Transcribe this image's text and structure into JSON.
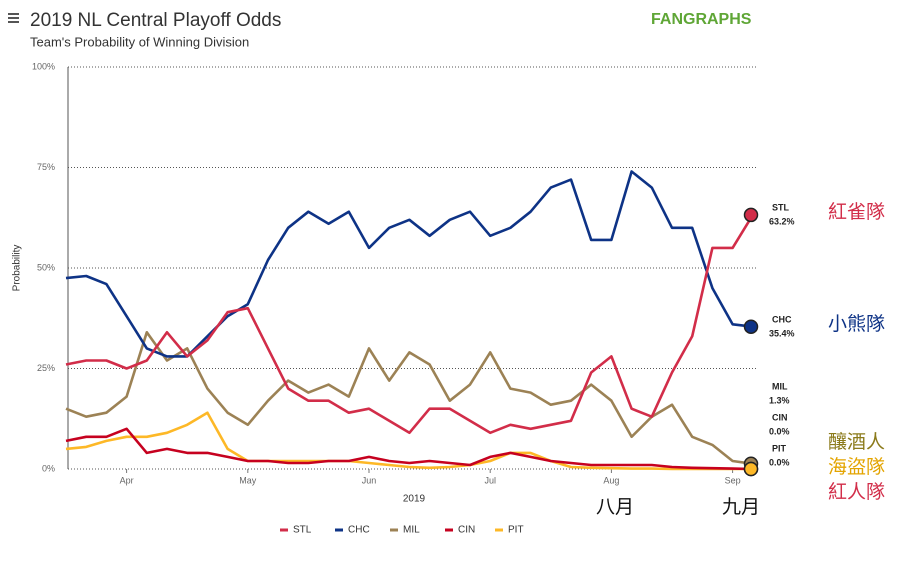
{
  "chart_data": {
    "type": "line",
    "title": "2019 NL Central Playoff Odds",
    "subtitle": "Team's Probability of Winning Division",
    "logo": "FANGRAPHS",
    "ylabel": "Probability",
    "xlabel": "2019",
    "categories": [
      null,
      null,
      null,
      "Apr",
      null,
      null,
      null,
      null,
      null,
      "May",
      null,
      null,
      null,
      null,
      null,
      "Jun",
      null,
      null,
      null,
      null,
      null,
      "Jul",
      null,
      null,
      null,
      null,
      null,
      "Aug",
      null,
      null,
      null,
      null,
      null,
      "Sep",
      null
    ],
    "ylim": [
      0,
      100
    ],
    "yticks": [
      {
        "value": 0,
        "label": "0%"
      },
      {
        "value": 25,
        "label": "25%"
      },
      {
        "value": 50,
        "label": "50%"
      },
      {
        "value": 75,
        "label": "75%"
      },
      {
        "value": 100,
        "label": "100%"
      }
    ],
    "grid": true,
    "legend": "bottom",
    "series": [
      {
        "name": "STL",
        "color": "#d22d49",
        "end_value_label": "63.2%",
        "values": [
          26,
          27,
          27,
          25,
          27,
          34,
          28,
          32,
          39,
          40,
          30,
          20,
          17,
          17,
          14,
          15,
          12,
          9,
          15,
          15,
          12,
          9,
          11,
          10,
          11,
          12,
          24,
          28,
          15,
          13,
          24,
          33,
          55,
          55,
          63.2
        ]
      },
      {
        "name": "CHC",
        "color": "#0e3386",
        "end_value_label": "35.4%",
        "values": [
          47.5,
          48,
          46,
          38,
          30,
          28,
          28,
          33,
          38,
          41,
          52,
          60,
          64,
          61,
          64,
          55,
          60,
          62,
          58,
          62,
          64,
          58,
          60,
          64,
          70,
          72,
          57,
          57,
          74,
          70,
          60,
          60,
          45,
          36,
          35.4
        ]
      },
      {
        "name": "MIL",
        "color": "#9c8255",
        "end_value_label": "1.3%",
        "values": [
          15,
          13,
          14,
          18,
          34,
          27,
          30,
          20,
          14,
          11,
          17,
          22,
          19,
          21,
          18,
          30,
          22,
          29,
          26,
          17,
          21,
          29,
          20,
          19,
          16,
          17,
          21,
          17,
          8,
          13,
          16,
          8,
          6,
          2,
          1.3
        ]
      },
      {
        "name": "CIN",
        "color": "#c6011f",
        "end_value_label": "0.0%",
        "values": [
          7,
          8,
          8,
          10,
          4,
          5,
          4,
          4,
          3,
          2,
          2,
          1.5,
          1.5,
          2,
          2,
          3,
          2,
          1.5,
          2,
          1.5,
          1,
          3,
          4,
          3,
          2,
          1.5,
          1,
          1,
          1,
          1,
          0.5,
          0.3,
          0.2,
          0.1,
          0
        ]
      },
      {
        "name": "PIT",
        "color": "#fdb827",
        "end_value_label": "0.0%",
        "values": [
          5,
          5.5,
          7,
          8,
          8,
          9,
          11,
          14,
          5,
          2,
          2,
          2,
          2,
          2,
          2,
          1.5,
          1,
          0.5,
          0.3,
          0.5,
          1,
          2,
          4,
          4,
          2,
          0.5,
          0.3,
          0.2,
          0.1,
          0.1,
          0,
          0,
          0,
          0,
          0
        ]
      }
    ],
    "annotations": [
      {
        "text": "紅雀隊",
        "color": "#d22d49"
      },
      {
        "text": "小熊隊",
        "color": "#0e3386"
      },
      {
        "text": "釀酒人",
        "color": "#8b7a1a"
      },
      {
        "text": "海盜隊",
        "color": "#e3a400"
      },
      {
        "text": "紅人隊",
        "color": "#d22d49"
      },
      {
        "text": "八月",
        "color": "#111111"
      },
      {
        "text": "九月",
        "color": "#111111"
      }
    ]
  }
}
